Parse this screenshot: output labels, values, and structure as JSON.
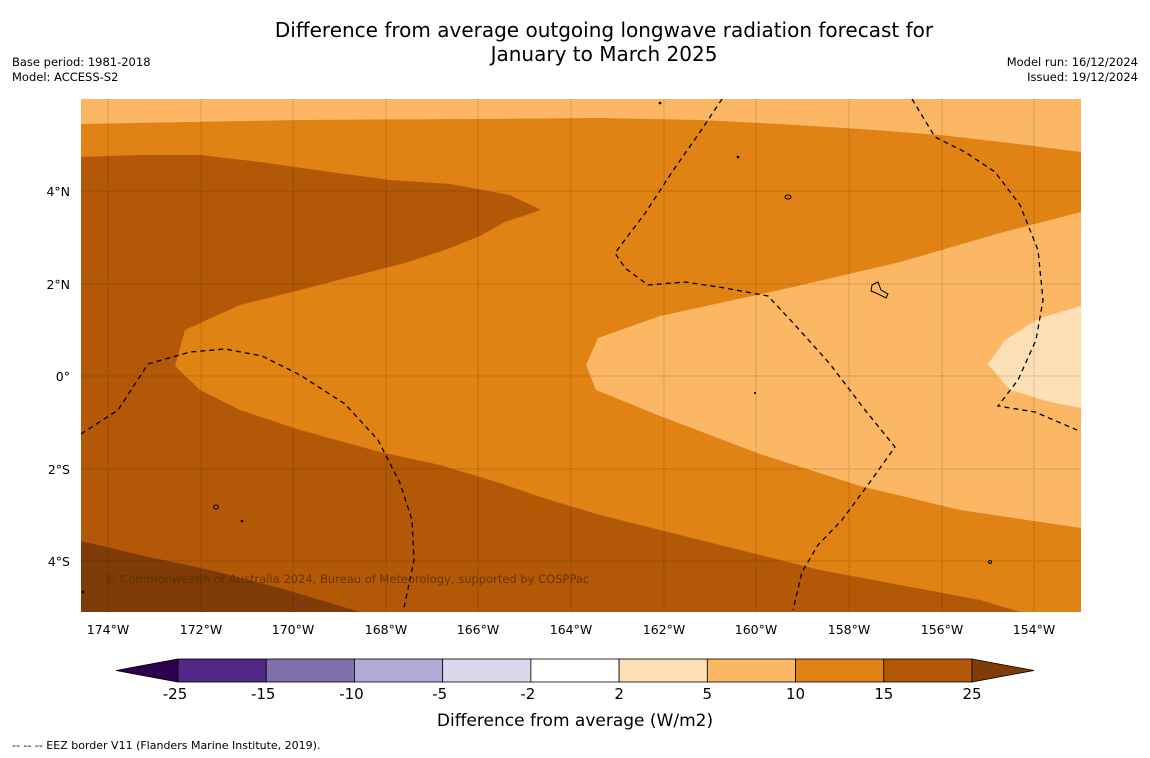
{
  "title_line1": "Difference from average outgoing longwave radiation forecast for",
  "title_line2": "January to March 2025",
  "base_period": "Base period: 1981-2018",
  "model": "Model: ACCESS-S2",
  "model_run": "Model run: 16/12/2024",
  "issued": "Issued: 19/12/2024",
  "copyright": "© Commonwealth of Australia 2024, Bureau of Meteorology, supported by COSPPac",
  "lon_labels": [
    "174°W",
    "172°W",
    "170°W",
    "168°W",
    "166°W",
    "164°W",
    "162°W",
    "160°W",
    "158°W",
    "156°W",
    "154°W"
  ],
  "lat_labels": [
    "4°N",
    "2°N",
    "0°",
    "2°S",
    "4°S"
  ],
  "colorbar": {
    "label": "Difference from average (W/m2)",
    "ticks": [
      "-25",
      "-15",
      "-10",
      "-5",
      "-2",
      "2",
      "5",
      "10",
      "15",
      "25"
    ],
    "colors": [
      "#512888",
      "#7f6fad",
      "#b3a9d5",
      "#d9d8ed",
      "#ffffff",
      "#fee0b6",
      "#fbb763",
      "#e08214",
      "#b35806"
    ],
    "extend_low": "#2d004b",
    "extend_high": "#7f3b08"
  },
  "legend_footer": "--  --  -- EEZ border V11 (Flanders Marine Institute, 2019)."
}
